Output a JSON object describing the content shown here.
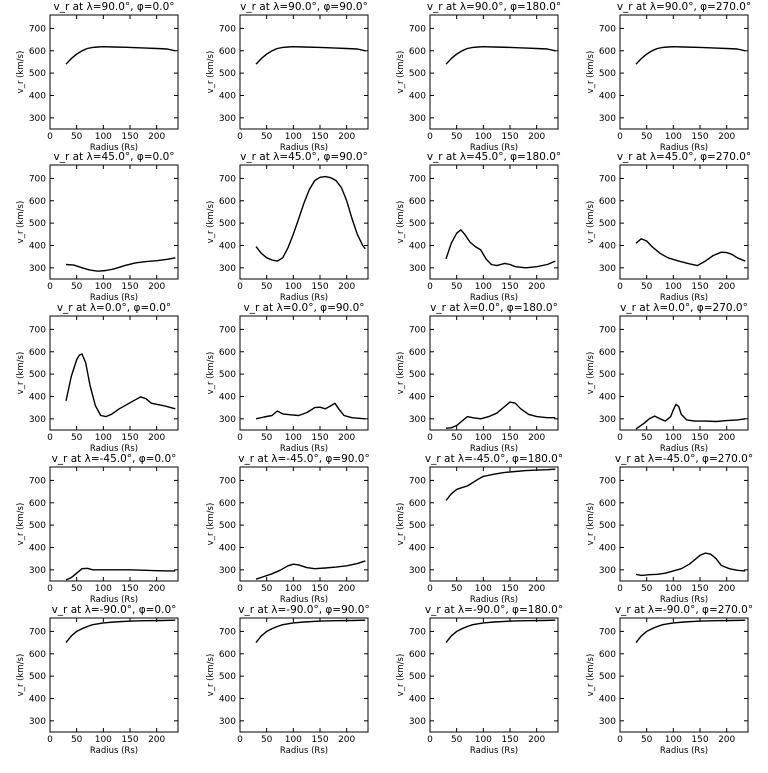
{
  "figure": {
    "xlabel": "Radius (Rs)",
    "ylabel": "v_r (km/s)",
    "xlim": [
      0,
      240
    ],
    "ylim": [
      250,
      760
    ],
    "xticks": [
      0,
      50,
      100,
      150,
      200
    ],
    "yticks": [
      300,
      400,
      500,
      600,
      700
    ]
  },
  "chart_data": [
    {
      "type": "line",
      "title": "v_r at λ=90.0°, φ=0.0°",
      "xlabel": "Radius (Rs)",
      "ylabel": "v_r (km/s)",
      "x": [
        30,
        40,
        50,
        60,
        70,
        80,
        90,
        100,
        120,
        150,
        180,
        200,
        220,
        235
      ],
      "y": [
        540,
        565,
        585,
        600,
        610,
        615,
        617,
        618,
        617,
        615,
        612,
        610,
        608,
        600
      ]
    },
    {
      "type": "line",
      "title": "v_r at λ=90.0°, φ=90.0°",
      "xlabel": "Radius (Rs)",
      "ylabel": "v_r (km/s)",
      "x": [
        30,
        40,
        50,
        60,
        70,
        80,
        90,
        100,
        120,
        150,
        180,
        200,
        220,
        235
      ],
      "y": [
        540,
        565,
        585,
        600,
        610,
        615,
        617,
        618,
        617,
        615,
        612,
        610,
        608,
        600
      ]
    },
    {
      "type": "line",
      "title": "v_r at λ=90.0°, φ=180.0°",
      "xlabel": "Radius (Rs)",
      "ylabel": "v_r (km/s)",
      "x": [
        30,
        40,
        50,
        60,
        70,
        80,
        90,
        100,
        120,
        150,
        180,
        200,
        220,
        235
      ],
      "y": [
        540,
        565,
        585,
        600,
        610,
        615,
        617,
        618,
        617,
        615,
        612,
        610,
        608,
        600
      ]
    },
    {
      "type": "line",
      "title": "v_r at λ=90.0°, φ=270.0°",
      "xlabel": "Radius (Rs)",
      "ylabel": "v_r (km/s)",
      "x": [
        30,
        40,
        50,
        60,
        70,
        80,
        90,
        100,
        120,
        150,
        180,
        200,
        220,
        235
      ],
      "y": [
        540,
        565,
        585,
        600,
        610,
        615,
        617,
        618,
        617,
        615,
        612,
        610,
        608,
        600
      ]
    },
    {
      "type": "line",
      "title": "v_r at λ=45.0°, φ=0.0°",
      "xlabel": "Radius (Rs)",
      "ylabel": "v_r (km/s)",
      "x": [
        30,
        45,
        60,
        75,
        90,
        105,
        120,
        140,
        160,
        180,
        200,
        220,
        235
      ],
      "y": [
        315,
        312,
        300,
        290,
        285,
        288,
        295,
        310,
        322,
        328,
        332,
        338,
        345
      ]
    },
    {
      "type": "line",
      "title": "v_r at λ=45.0°, φ=90.0°",
      "xlabel": "Radius (Rs)",
      "ylabel": "v_r (km/s)",
      "x": [
        30,
        40,
        50,
        60,
        70,
        80,
        90,
        100,
        110,
        120,
        130,
        140,
        150,
        160,
        170,
        180,
        190,
        200,
        210,
        220,
        230,
        235
      ],
      "y": [
        395,
        365,
        345,
        335,
        330,
        345,
        390,
        450,
        520,
        590,
        650,
        690,
        705,
        708,
        703,
        690,
        660,
        600,
        520,
        450,
        400,
        385
      ]
    },
    {
      "type": "line",
      "title": "v_r at λ=45.0°, φ=180.0°",
      "xlabel": "Radius (Rs)",
      "ylabel": "v_r (km/s)",
      "x": [
        30,
        40,
        50,
        58,
        65,
        75,
        85,
        95,
        105,
        115,
        125,
        140,
        150,
        160,
        180,
        200,
        220,
        235
      ],
      "y": [
        340,
        410,
        455,
        470,
        450,
        415,
        395,
        380,
        340,
        315,
        310,
        320,
        315,
        305,
        300,
        305,
        315,
        330
      ]
    },
    {
      "type": "line",
      "title": "v_r at λ=45.0°, φ=270.0°",
      "xlabel": "Radius (Rs)",
      "ylabel": "v_r (km/s)",
      "x": [
        30,
        40,
        50,
        60,
        75,
        90,
        110,
        130,
        145,
        160,
        175,
        190,
        200,
        210,
        220,
        235
      ],
      "y": [
        410,
        430,
        420,
        395,
        365,
        345,
        330,
        318,
        310,
        330,
        355,
        370,
        368,
        360,
        345,
        330
      ]
    },
    {
      "type": "line",
      "title": "v_r at λ=0.0°, φ=0.0°",
      "xlabel": "Radius (Rs)",
      "ylabel": "v_r (km/s)",
      "x": [
        30,
        40,
        50,
        55,
        60,
        67,
        75,
        85,
        95,
        105,
        115,
        130,
        145,
        160,
        170,
        180,
        190,
        200,
        215,
        235
      ],
      "y": [
        380,
        490,
        565,
        585,
        590,
        550,
        450,
        360,
        315,
        310,
        320,
        345,
        365,
        385,
        398,
        390,
        370,
        365,
        358,
        345
      ]
    },
    {
      "type": "line",
      "title": "v_r at λ=0.0°, φ=90.0°",
      "xlabel": "Radius (Rs)",
      "ylabel": "v_r (km/s)",
      "x": [
        30,
        45,
        60,
        70,
        80,
        95,
        110,
        125,
        140,
        150,
        160,
        170,
        178,
        185,
        195,
        210,
        235
      ],
      "y": [
        300,
        308,
        315,
        335,
        322,
        318,
        315,
        328,
        350,
        352,
        345,
        358,
        370,
        345,
        315,
        305,
        300
      ]
    },
    {
      "type": "line",
      "title": "v_r at λ=0.0°, φ=180.0°",
      "xlabel": "Radius (Rs)",
      "ylabel": "v_r (km/s)",
      "x": [
        30,
        40,
        50,
        60,
        70,
        80,
        95,
        110,
        125,
        140,
        150,
        160,
        170,
        185,
        200,
        220,
        235
      ],
      "y": [
        258,
        260,
        270,
        290,
        310,
        305,
        300,
        310,
        325,
        355,
        375,
        370,
        345,
        320,
        310,
        305,
        305
      ]
    },
    {
      "type": "line",
      "title": "v_r at λ=0.0°, φ=270.0°",
      "xlabel": "Radius (Rs)",
      "ylabel": "v_r (km/s)",
      "x": [
        30,
        45,
        55,
        65,
        75,
        85,
        95,
        100,
        105,
        110,
        115,
        125,
        140,
        160,
        180,
        200,
        220,
        235
      ],
      "y": [
        255,
        280,
        300,
        312,
        300,
        290,
        310,
        340,
        365,
        355,
        320,
        295,
        290,
        290,
        288,
        292,
        295,
        300
      ]
    },
    {
      "type": "line",
      "title": "v_r at λ=-45.0°, φ=0.0°",
      "xlabel": "Radius (Rs)",
      "ylabel": "v_r (km/s)",
      "x": [
        30,
        40,
        50,
        60,
        70,
        80,
        100,
        120,
        150,
        180,
        200,
        220,
        235
      ],
      "y": [
        255,
        265,
        285,
        305,
        307,
        300,
        300,
        300,
        300,
        298,
        296,
        295,
        295
      ]
    },
    {
      "type": "line",
      "title": "v_r at λ=-45.0°, φ=90.0°",
      "xlabel": "Radius (Rs)",
      "ylabel": "v_r (km/s)",
      "x": [
        30,
        45,
        60,
        75,
        90,
        100,
        110,
        125,
        140,
        160,
        180,
        200,
        220,
        235
      ],
      "y": [
        258,
        270,
        282,
        298,
        318,
        325,
        322,
        310,
        305,
        308,
        312,
        318,
        328,
        340
      ]
    },
    {
      "type": "line",
      "title": "v_r at λ=-45.0°, φ=180.0°",
      "xlabel": "Radius (Rs)",
      "ylabel": "v_r (km/s)",
      "x": [
        30,
        40,
        50,
        60,
        70,
        80,
        90,
        100,
        120,
        140,
        160,
        180,
        200,
        220,
        235
      ],
      "y": [
        610,
        640,
        660,
        668,
        675,
        690,
        705,
        718,
        728,
        736,
        740,
        744,
        746,
        748,
        750
      ]
    },
    {
      "type": "line",
      "title": "v_r at λ=-45.0°, φ=270.0°",
      "xlabel": "Radius (Rs)",
      "ylabel": "v_r (km/s)",
      "x": [
        30,
        40,
        55,
        70,
        85,
        100,
        115,
        130,
        140,
        150,
        160,
        170,
        180,
        190,
        205,
        220,
        235
      ],
      "y": [
        280,
        275,
        278,
        280,
        285,
        295,
        305,
        325,
        345,
        365,
        375,
        370,
        350,
        320,
        305,
        298,
        295
      ]
    },
    {
      "type": "line",
      "title": "v_r at λ=-90.0°, φ=0.0°",
      "xlabel": "Radius (Rs)",
      "ylabel": "v_r (km/s)",
      "x": [
        30,
        40,
        50,
        60,
        70,
        80,
        100,
        120,
        150,
        180,
        210,
        235
      ],
      "y": [
        650,
        680,
        700,
        712,
        722,
        730,
        738,
        742,
        746,
        748,
        749,
        750
      ]
    },
    {
      "type": "line",
      "title": "v_r at λ=-90.0°, φ=90.0°",
      "xlabel": "Radius (Rs)",
      "ylabel": "v_r (km/s)",
      "x": [
        30,
        40,
        50,
        60,
        70,
        80,
        100,
        120,
        150,
        180,
        210,
        235
      ],
      "y": [
        650,
        680,
        700,
        712,
        722,
        730,
        738,
        742,
        746,
        748,
        749,
        750
      ]
    },
    {
      "type": "line",
      "title": "v_r at λ=-90.0°, φ=180.0°",
      "xlabel": "Radius (Rs)",
      "ylabel": "v_r (km/s)",
      "x": [
        30,
        40,
        50,
        60,
        70,
        80,
        100,
        120,
        150,
        180,
        210,
        235
      ],
      "y": [
        650,
        680,
        700,
        712,
        722,
        730,
        738,
        742,
        746,
        748,
        749,
        750
      ]
    },
    {
      "type": "line",
      "title": "v_r at λ=-90.0°, φ=270.0°",
      "xlabel": "Radius (Rs)",
      "ylabel": "v_r (km/s)",
      "x": [
        30,
        40,
        50,
        60,
        70,
        80,
        100,
        120,
        150,
        180,
        210,
        235
      ],
      "y": [
        650,
        680,
        700,
        712,
        722,
        730,
        738,
        742,
        746,
        748,
        749,
        750
      ]
    }
  ]
}
